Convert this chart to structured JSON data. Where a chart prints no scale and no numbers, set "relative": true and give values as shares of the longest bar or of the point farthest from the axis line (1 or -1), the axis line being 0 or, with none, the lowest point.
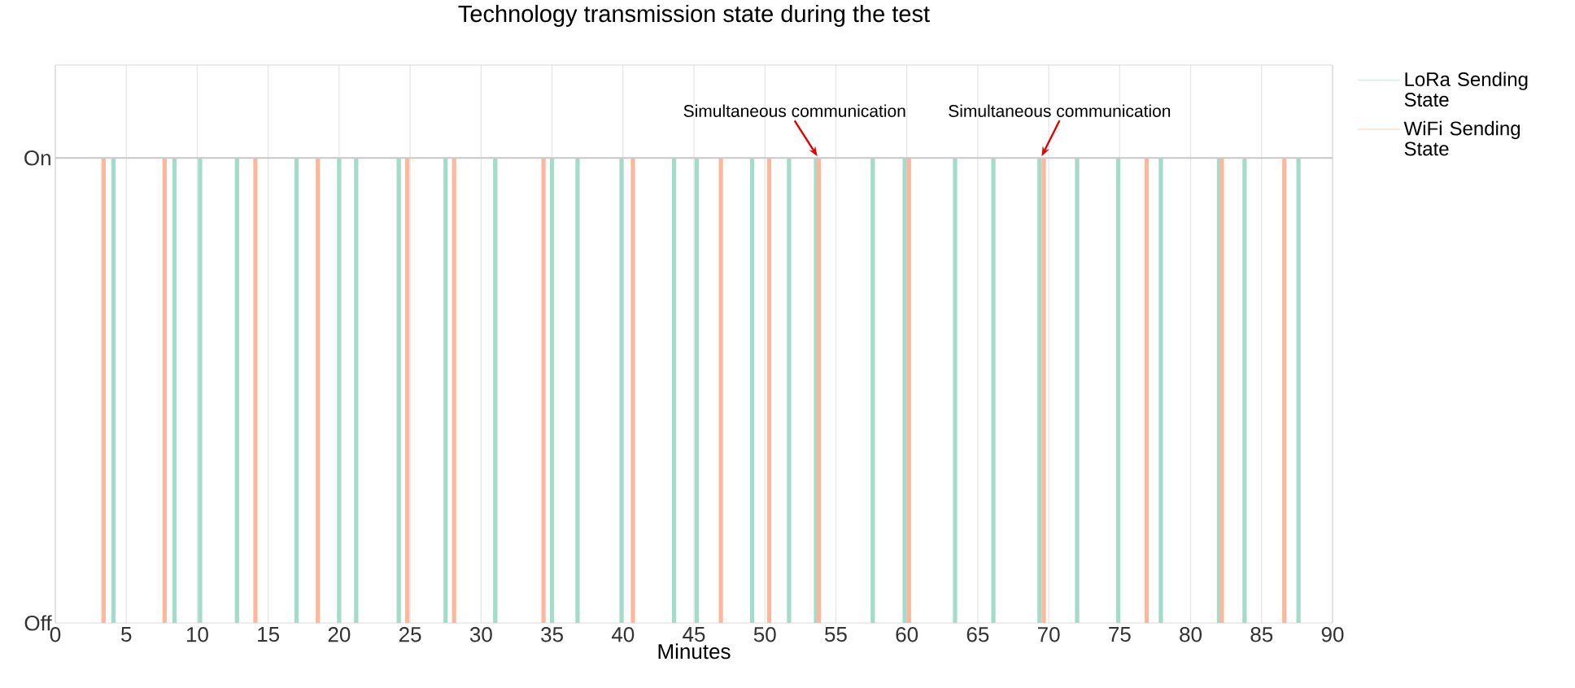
{
  "chart_data": {
    "type": "bar",
    "title": "Technology transmission state during the test",
    "xlabel": "Minutes",
    "series": [
      {
        "name": "LoRa Sending State",
        "color": "#a3dccb",
        "x": [
          4.1,
          8.4,
          10.2,
          12.8,
          17.0,
          20.0,
          21.2,
          24.2,
          27.5,
          31.0,
          35.0,
          36.8,
          39.9,
          43.6,
          45.2,
          49.1,
          51.7,
          53.6,
          57.6,
          59.85,
          63.4,
          66.1,
          69.35,
          72.0,
          74.9,
          77.9,
          82.0,
          83.8,
          87.6
        ],
        "values": [
          1,
          1,
          1,
          1,
          1,
          1,
          1,
          1,
          1,
          1,
          1,
          1,
          1,
          1,
          1,
          1,
          1,
          1,
          1,
          1,
          1,
          1,
          1,
          1,
          1,
          1,
          1,
          1,
          1
        ]
      },
      {
        "name": "WiFi Sending State",
        "color": "#fdb89c",
        "x": [
          3.4,
          7.7,
          14.1,
          18.5,
          24.8,
          28.1,
          34.4,
          40.7,
          46.9,
          50.3,
          53.8,
          60.15,
          69.65,
          76.9,
          82.2,
          86.6
        ],
        "values": [
          1,
          1,
          1,
          1,
          1,
          1,
          1,
          1,
          1,
          1,
          1,
          1,
          1,
          1,
          1,
          1
        ]
      }
    ],
    "xlim": [
      0,
      90
    ],
    "xticks": [
      0,
      5,
      10,
      15,
      20,
      25,
      30,
      35,
      40,
      45,
      50,
      55,
      60,
      65,
      70,
      75,
      80,
      85,
      90
    ],
    "relative": true,
    "ref_lines": [
      {
        "axis": "y",
        "value": 1,
        "label": "On"
      }
    ],
    "annotations": [
      {
        "text": "Simultaneous communication",
        "x": 53.7,
        "y": 1
      },
      {
        "text": "Simultaneous communication",
        "x": 69.5,
        "y": 1
      },
      "Off"
    ],
    "grid": "x",
    "legend": "right"
  }
}
